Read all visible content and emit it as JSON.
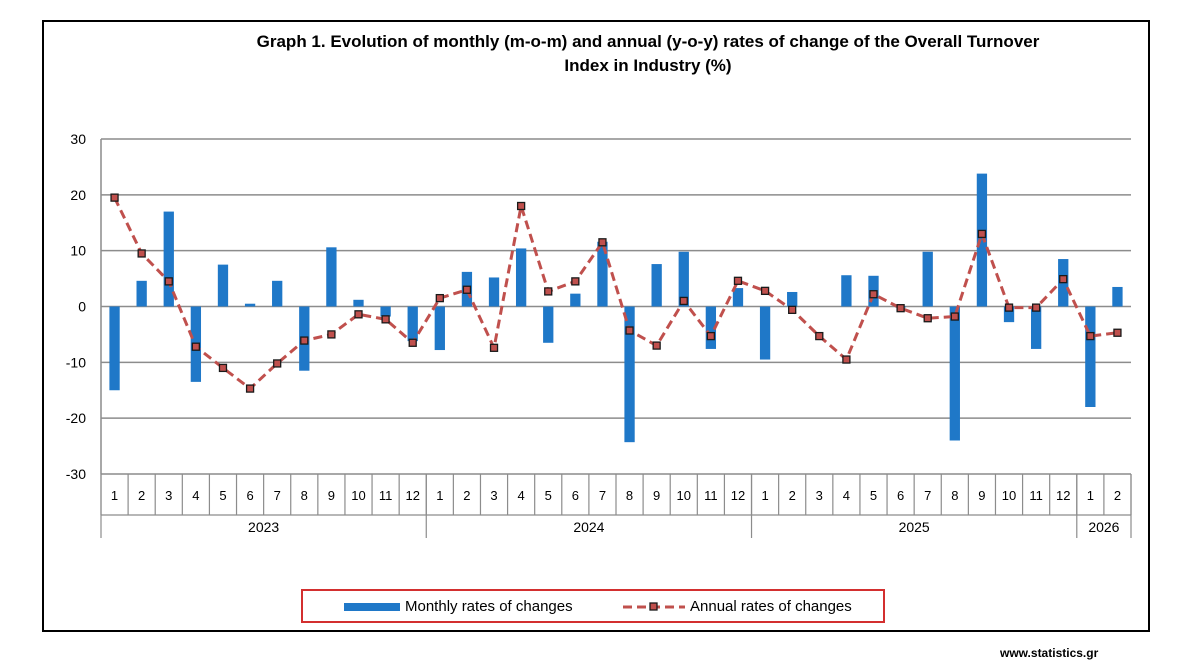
{
  "title_line1": "Graph 1. Evolution of monthly (m-o-m) and annual (y-o-y) rates of change of the Overall Turnover",
  "title_line2": "Index in Industry (%)",
  "footer": "www.statistics.gr",
  "legend": {
    "monthly": "Monthly rates of changes",
    "annual": "Annual rates of changes"
  },
  "colors": {
    "bar": "#1f78c8",
    "line": "#c0504d",
    "marker_fill": "#c0504d",
    "marker_edge": "#1a1a1a",
    "grid": "#8c8c8c"
  },
  "chart_data": {
    "type": "bar",
    "title": "Graph 1. Evolution of monthly (m-o-m) and annual (y-o-y) rates of change of the Overall Turnover Index in Industry (%)",
    "ylim": [
      -30,
      30
    ],
    "yticks": [
      30,
      20,
      10,
      0,
      -10,
      -20,
      -30
    ],
    "grid": true,
    "legend_position": "bottom",
    "categories": [
      "1",
      "2",
      "3",
      "4",
      "5",
      "6",
      "7",
      "8",
      "9",
      "10",
      "11",
      "12",
      "1",
      "2",
      "3",
      "4",
      "5",
      "6",
      "7",
      "8",
      "9",
      "10",
      "11",
      "12",
      "1",
      "2",
      "3",
      "4",
      "5",
      "6",
      "7",
      "8",
      "9",
      "10",
      "11",
      "12",
      "1",
      "2"
    ],
    "years": [
      {
        "label": "2023",
        "count": 12
      },
      {
        "label": "2024",
        "count": 12
      },
      {
        "label": "2025",
        "count": 12
      },
      {
        "label": "2026",
        "count": 2
      }
    ],
    "series": [
      {
        "name": "Monthly rates of changes",
        "type": "bar",
        "values": [
          -15.0,
          4.6,
          17.0,
          -13.5,
          7.5,
          0.5,
          4.6,
          -11.5,
          10.6,
          1.2,
          -1.8,
          -6.2,
          -7.8,
          6.2,
          5.2,
          10.4,
          -6.5,
          2.3,
          11.6,
          -24.3,
          7.6,
          9.8,
          -7.6,
          3.3,
          -9.5,
          2.6,
          0.0,
          5.6,
          5.5,
          -0.2,
          9.8,
          -24.0,
          23.8,
          -2.8,
          -7.6,
          8.5,
          -18.0,
          3.5
        ]
      },
      {
        "name": "Annual rates of changes",
        "type": "line",
        "values": [
          19.5,
          9.5,
          4.5,
          -7.2,
          -11.0,
          -14.7,
          -10.2,
          -6.1,
          -5.0,
          -1.4,
          -2.3,
          -6.5,
          1.5,
          3.0,
          -7.4,
          18.0,
          2.7,
          4.5,
          11.5,
          -4.3,
          -7.0,
          1.0,
          -5.3,
          4.6,
          2.8,
          -0.6,
          -5.3,
          -9.5,
          2.2,
          -0.3,
          -2.1,
          -1.8,
          13.0,
          -0.2,
          -0.2,
          4.9,
          -5.3,
          -4.7
        ]
      }
    ]
  }
}
